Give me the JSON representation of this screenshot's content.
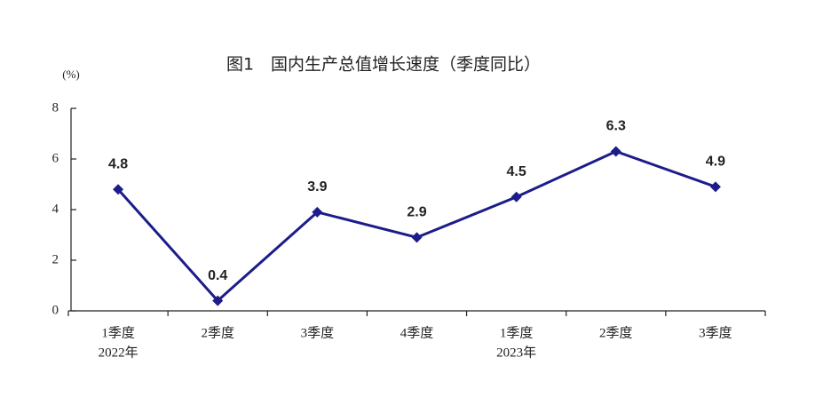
{
  "chart_data": {
    "type": "line",
    "title": "图1　国内生产总值增长速度（季度同比）",
    "ylabel": "(%)",
    "categories": [
      "1季度",
      "2季度",
      "3季度",
      "4季度",
      "1季度",
      "2季度",
      "3季度"
    ],
    "year_labels": [
      "2022年",
      null,
      null,
      null,
      "2023年",
      null,
      null
    ],
    "values": [
      4.8,
      0.4,
      3.9,
      2.9,
      4.5,
      6.3,
      4.9
    ],
    "color": "#1c1c8a",
    "ylim": [
      0,
      8
    ],
    "yticks": [
      0,
      2,
      4,
      6,
      8
    ],
    "grid": false
  }
}
